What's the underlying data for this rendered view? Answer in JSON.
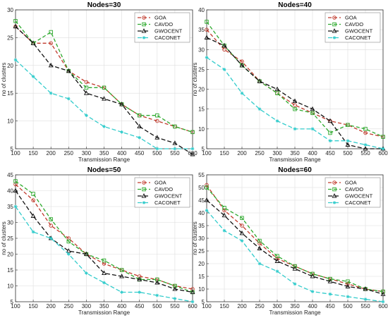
{
  "chart_data": [
    {
      "type": "line",
      "title": "Nodes=30",
      "xlabel": "Transmission Range",
      "ylabel": "no of clusters",
      "xlim": [
        100,
        600
      ],
      "ylim": [
        5,
        30
      ],
      "xticks": [
        100,
        150,
        200,
        250,
        300,
        350,
        400,
        450,
        500,
        550,
        600
      ],
      "yticks": [
        5,
        10,
        15,
        20,
        25,
        30
      ],
      "grid": true,
      "legend_position": "top-right",
      "x": [
        100,
        150,
        200,
        250,
        300,
        350,
        400,
        450,
        500,
        550,
        600
      ],
      "series": [
        {
          "name": "GOA",
          "color": "#c0392b",
          "marker": "circle",
          "values": [
            27,
            24,
            24,
            19,
            17,
            16,
            13,
            11,
            10,
            9,
            8
          ]
        },
        {
          "name": "CAVDO",
          "color": "#2eaa2e",
          "marker": "square",
          "values": [
            28,
            24,
            26,
            19,
            16,
            16,
            13,
            11,
            11,
            9,
            8
          ]
        },
        {
          "name": "GWOCENT",
          "color": "#111111",
          "marker": "triangle",
          "values": [
            27,
            24,
            20,
            19,
            15,
            14,
            13,
            9,
            7,
            6,
            4
          ]
        },
        {
          "name": "CACONET",
          "color": "#33cccc",
          "marker": "star",
          "values": [
            21,
            18,
            15,
            14,
            11,
            9,
            8,
            7,
            5,
            5,
            5
          ]
        }
      ]
    },
    {
      "type": "line",
      "title": "Nodes=40",
      "xlabel": "Transmission Range",
      "ylabel": "no of clusters",
      "xlim": [
        100,
        600
      ],
      "ylim": [
        5,
        40
      ],
      "xticks": [
        100,
        150,
        200,
        250,
        300,
        350,
        400,
        450,
        500,
        550,
        600
      ],
      "yticks": [
        5,
        10,
        15,
        20,
        25,
        30,
        35,
        40
      ],
      "grid": true,
      "legend_position": "top-right",
      "x": [
        100,
        150,
        200,
        250,
        300,
        350,
        400,
        450,
        500,
        550,
        600
      ],
      "series": [
        {
          "name": "GOA",
          "color": "#c0392b",
          "marker": "circle",
          "values": [
            35,
            30,
            27,
            22,
            19,
            16,
            14,
            12,
            11,
            9,
            8
          ]
        },
        {
          "name": "CAVDO",
          "color": "#2eaa2e",
          "marker": "square",
          "values": [
            37,
            31,
            26,
            22,
            19,
            15,
            14,
            9,
            11,
            10,
            8
          ]
        },
        {
          "name": "GWOCENT",
          "color": "#111111",
          "marker": "triangle",
          "values": [
            33,
            31,
            26,
            22,
            20,
            17,
            15,
            12,
            6,
            5,
            5
          ]
        },
        {
          "name": "CACONET",
          "color": "#33cccc",
          "marker": "star",
          "values": [
            28,
            25,
            19,
            15,
            12,
            10,
            10,
            7,
            7,
            6,
            5
          ]
        }
      ]
    },
    {
      "type": "line",
      "title": "Nodes=50",
      "xlabel": "Transmission Range",
      "ylabel": "no of clusters",
      "xlim": [
        100,
        600
      ],
      "ylim": [
        5,
        45
      ],
      "xticks": [
        100,
        150,
        200,
        250,
        300,
        350,
        400,
        450,
        500,
        550,
        600
      ],
      "yticks": [
        5,
        10,
        15,
        20,
        25,
        30,
        35,
        40,
        45
      ],
      "grid": true,
      "legend_position": "top-right",
      "x": [
        100,
        150,
        200,
        250,
        300,
        350,
        400,
        450,
        500,
        550,
        600
      ],
      "series": [
        {
          "name": "GOA",
          "color": "#c0392b",
          "marker": "circle",
          "values": [
            42,
            37,
            29,
            25,
            20,
            17,
            15,
            13,
            12,
            10,
            9
          ]
        },
        {
          "name": "CAVDO",
          "color": "#2eaa2e",
          "marker": "square",
          "values": [
            43,
            39,
            31,
            24,
            20,
            18,
            15,
            12,
            12,
            10,
            8
          ]
        },
        {
          "name": "GWOCENT",
          "color": "#111111",
          "marker": "triangle",
          "values": [
            40,
            32,
            25,
            21,
            20,
            14,
            13,
            12,
            11,
            9,
            8
          ]
        },
        {
          "name": "CACONET",
          "color": "#33cccc",
          "marker": "star",
          "values": [
            35,
            27,
            25,
            20,
            14,
            11,
            8,
            8,
            7,
            6,
            5
          ]
        }
      ]
    },
    {
      "type": "line",
      "title": "Nodes=60",
      "xlabel": "Transmission Range",
      "ylabel": "no of clusters",
      "xlim": [
        100,
        600
      ],
      "ylim": [
        5,
        55
      ],
      "xticks": [
        100,
        150,
        200,
        250,
        300,
        350,
        400,
        450,
        500,
        550,
        600
      ],
      "yticks": [
        5,
        10,
        15,
        20,
        25,
        30,
        35,
        40,
        45,
        50,
        55
      ],
      "grid": true,
      "legend_position": "top-right",
      "x": [
        100,
        150,
        200,
        250,
        300,
        350,
        400,
        450,
        500,
        550,
        600
      ],
      "series": [
        {
          "name": "GOA",
          "color": "#c0392b",
          "marker": "circle",
          "values": [
            51,
            41,
            35,
            28,
            22,
            19,
            16,
            14,
            12,
            10,
            9
          ]
        },
        {
          "name": "CAVDO",
          "color": "#2eaa2e",
          "marker": "square",
          "values": [
            50,
            42,
            38,
            29,
            23,
            19,
            16,
            14,
            13,
            10,
            9
          ]
        },
        {
          "name": "GWOCENT",
          "color": "#111111",
          "marker": "triangle",
          "values": [
            45,
            39,
            32,
            26,
            21,
            18,
            15,
            13,
            11,
            10,
            8
          ]
        },
        {
          "name": "CACONET",
          "color": "#33cccc",
          "marker": "star",
          "values": [
            41,
            33,
            29,
            20,
            17,
            12,
            9,
            8,
            7,
            6,
            5
          ]
        }
      ]
    }
  ]
}
